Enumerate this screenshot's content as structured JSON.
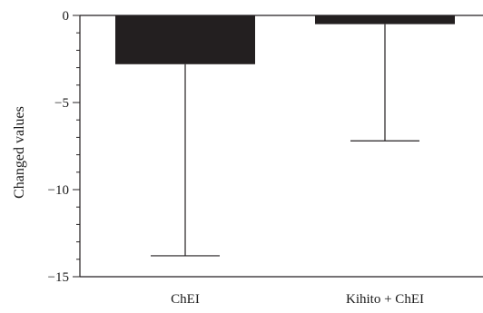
{
  "chart_data": {
    "type": "bar",
    "title": "",
    "xlabel": "",
    "ylabel": "Changed values",
    "categories": [
      "ChEI",
      "Kihito + ChEI"
    ],
    "values": [
      -2.8,
      -0.5
    ],
    "error_lower": [
      -13.8,
      -7.2
    ],
    "ylim": [
      -15,
      0
    ],
    "yticks": [
      0,
      -5,
      -10,
      -15
    ],
    "ytick_labels": [
      "0",
      "−5",
      "−10",
      "−15"
    ],
    "minor_tick_step": 1,
    "grid": false,
    "bar_color": "#231f20",
    "axis_color": "#231f20"
  }
}
